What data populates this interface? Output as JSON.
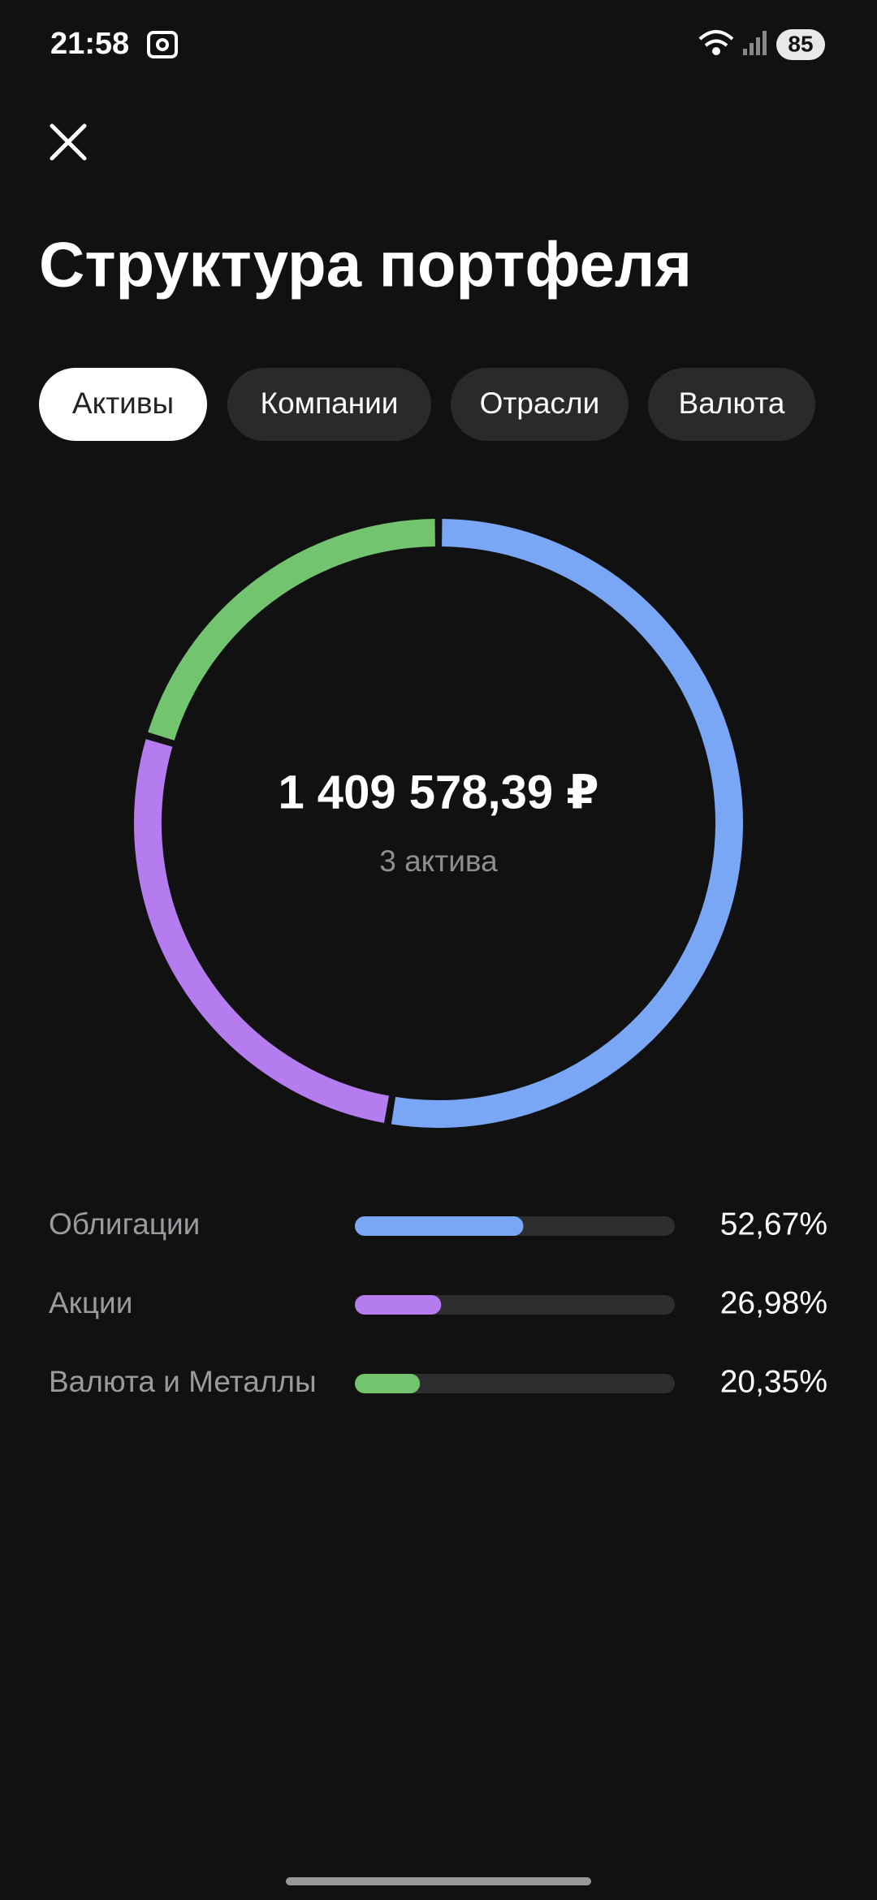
{
  "status_bar": {
    "time": "21:58",
    "battery": "85"
  },
  "header": {
    "title": "Структура портфеля"
  },
  "tabs": {
    "items": [
      "Активы",
      "Компании",
      "Отрасли",
      "Валюта"
    ],
    "active": 0
  },
  "chart_data": {
    "type": "donut",
    "center_value": "1 409 578,39 ₽",
    "center_caption": "3 актива",
    "categories": [
      "Облигации",
      "Акции",
      "Валюта и Металлы"
    ],
    "values": [
      52.67,
      26.98,
      20.35
    ],
    "value_labels": [
      "52,67%",
      "26,98%",
      "20,35%"
    ],
    "colors": [
      "#7aa7f5",
      "#b57cf0",
      "#72c46e"
    ],
    "xlim": [
      0,
      100
    ]
  }
}
